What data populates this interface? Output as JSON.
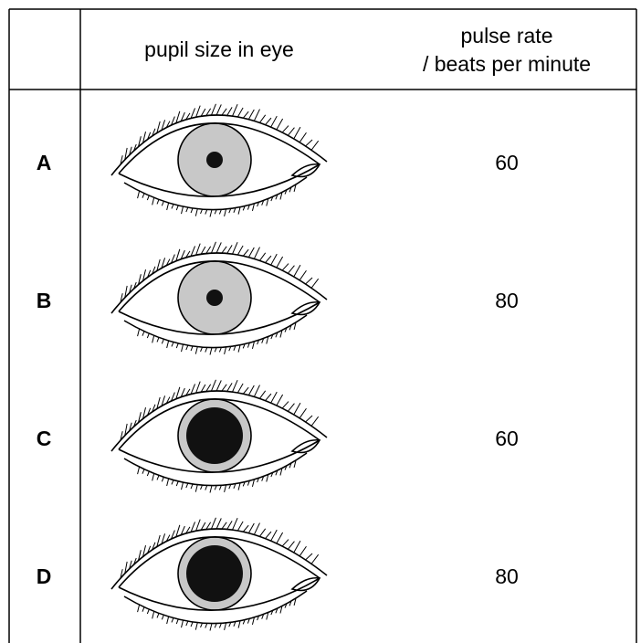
{
  "table": {
    "header": {
      "label": "",
      "pupil": "pupil size in eye",
      "pulse": [
        "pulse rate",
        "/ beats per minute"
      ]
    },
    "rows": [
      {
        "label": "A",
        "pulse_rate": 60
      },
      {
        "label": "B",
        "pulse_rate": 80
      },
      {
        "label": "C",
        "pulse_rate": 60
      },
      {
        "label": "D",
        "pulse_rate": 80
      }
    ]
  }
}
